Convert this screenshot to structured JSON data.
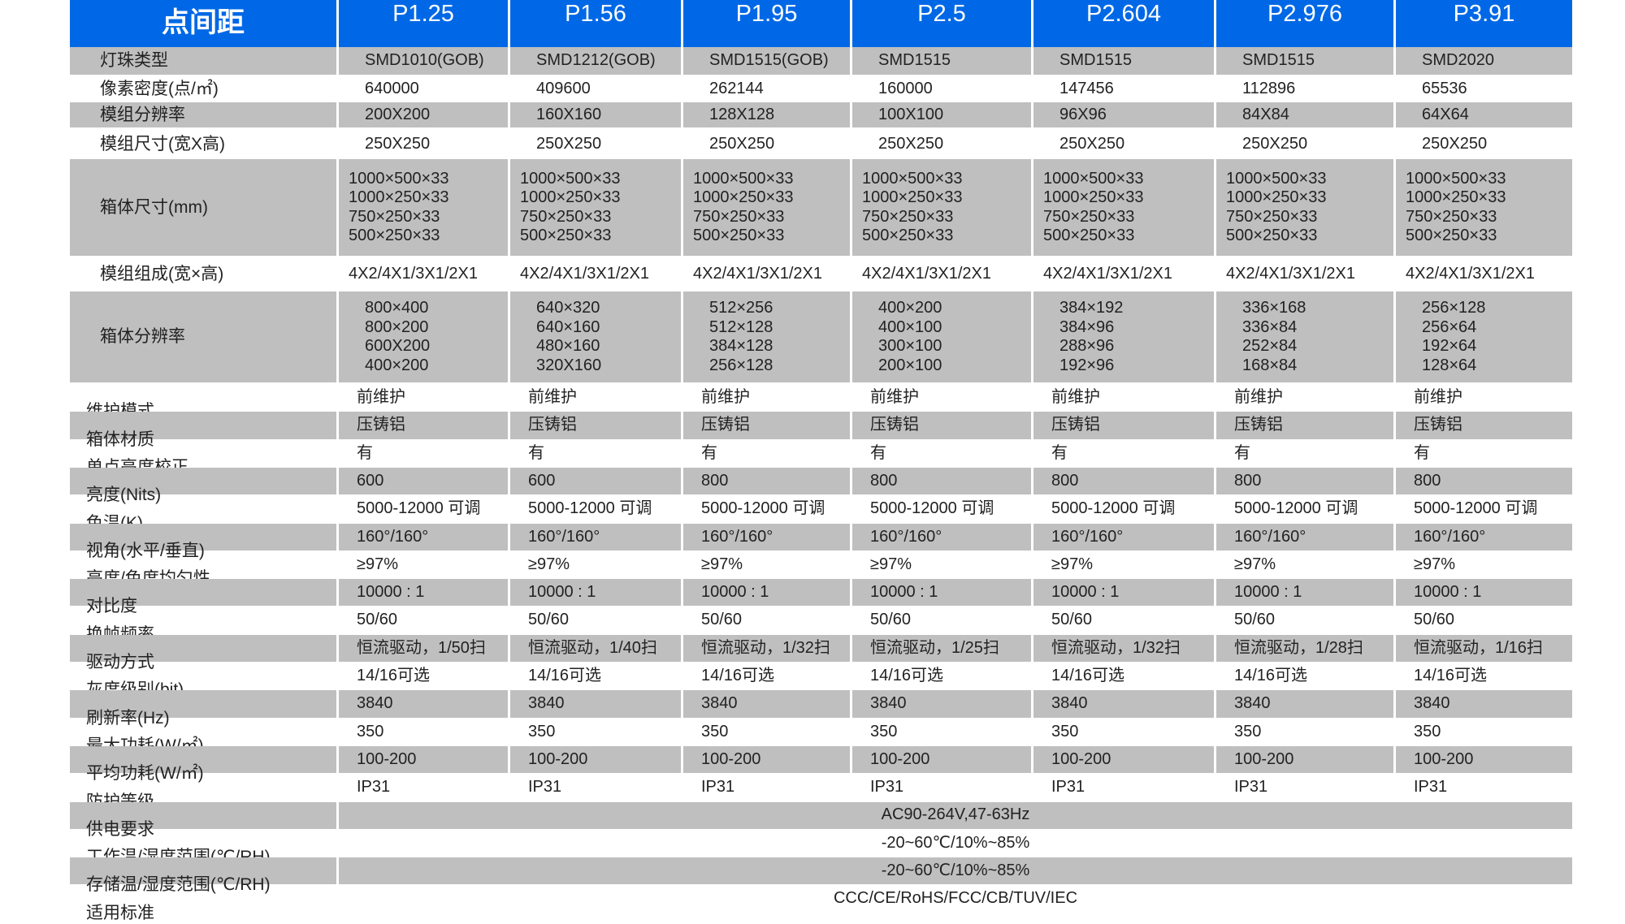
{
  "header": {
    "title": "点间距",
    "columns": [
      "P1.25",
      "P1.56",
      "P1.95",
      "P2.5",
      "P2.604",
      "P2.976",
      "P3.91"
    ]
  },
  "upper_rows": [
    {
      "label": "灯珠类型",
      "values": [
        "SMD1010(GOB)",
        "SMD1212(GOB)",
        "SMD1515(GOB)",
        "SMD1515",
        "SMD1515",
        "SMD1515",
        "SMD2020"
      ]
    },
    {
      "label": "像素密度(点/㎡)",
      "values": [
        "640000",
        "409600",
        "262144",
        "160000",
        "147456",
        "112896",
        "65536"
      ]
    },
    {
      "label": "模组分辨率",
      "values": [
        "200X200",
        "160X160",
        "128X128",
        "100X100",
        "96X96",
        "84X84",
        "64X64"
      ]
    },
    {
      "label": "模组尺寸(宽X高)",
      "values": [
        "250X250",
        "250X250",
        "250X250",
        "250X250",
        "250X250",
        "250X250",
        "250X250"
      ]
    },
    {
      "label": "箱体尺寸(mm)",
      "values": [
        "1000×500×33\n1000×250×33\n 750×250×33\n 500×250×33",
        "1000×500×33\n1000×250×33\n 750×250×33\n 500×250×33",
        "1000×500×33\n1000×250×33\n 750×250×33\n 500×250×33",
        "1000×500×33\n1000×250×33\n 750×250×33\n 500×250×33",
        "1000×500×33\n1000×250×33\n 750×250×33\n 500×250×33",
        "1000×500×33\n1000×250×33\n 750×250×33\n 500×250×33",
        "1000×500×33\n1000×250×33\n 750×250×33\n 500×250×33"
      ]
    },
    {
      "label": "模组组成(宽×高)",
      "values": [
        "4X2/4X1/3X1/2X1",
        "4X2/4X1/3X1/2X1",
        "4X2/4X1/3X1/2X1",
        "4X2/4X1/3X1/2X1",
        "4X2/4X1/3X1/2X1",
        "4X2/4X1/3X1/2X1",
        "4X2/4X1/3X1/2X1"
      ]
    },
    {
      "label": "箱体分辨率",
      "values": [
        "800×400\n800×200\n600X200\n400×200",
        "640×320\n640×160\n480×160\n320X160",
        "512×256\n512×128\n384×128\n256×128",
        "400×200\n400×100\n300×100\n200×100",
        "384×192\n384×96\n288×96\n192×96",
        "336×168\n336×84\n252×84\n168×84",
        "256×128\n256×64\n192×64\n128×64"
      ]
    }
  ],
  "lower_rows": [
    {
      "label": "维护模式",
      "values": [
        "前维护",
        "前维护",
        "前维护",
        "前维护",
        "前维护",
        "前维护",
        "前维护"
      ]
    },
    {
      "label": "箱体材质",
      "values": [
        "压铸铝",
        "压铸铝",
        "压铸铝",
        "压铸铝",
        "压铸铝",
        "压铸铝",
        "压铸铝"
      ]
    },
    {
      "label": "单点亮度校正",
      "values": [
        "有",
        "有",
        "有",
        "有",
        "有",
        "有",
        "有"
      ]
    },
    {
      "label": "亮度(Nits)",
      "values": [
        "600",
        "600",
        "800",
        "800",
        "800",
        "800",
        "800"
      ]
    },
    {
      "label": "色温(K)",
      "values": [
        "5000-12000 可调",
        "5000-12000 可调",
        "5000-12000 可调",
        "5000-12000 可调",
        "5000-12000 可调",
        "5000-12000 可调",
        "5000-12000 可调"
      ]
    },
    {
      "label": "视角(水平/垂直)",
      "values": [
        "160°/160°",
        "160°/160°",
        "160°/160°",
        "160°/160°",
        "160°/160°",
        "160°/160°",
        "160°/160°"
      ]
    },
    {
      "label": "亮度/色度均匀性",
      "values": [
        "≥97%",
        "≥97%",
        "≥97%",
        "≥97%",
        "≥97%",
        "≥97%",
        "≥97%"
      ]
    },
    {
      "label": "对比度",
      "values": [
        "10000 : 1",
        "10000 : 1",
        "10000 : 1",
        "10000 : 1",
        "10000 : 1",
        "10000 : 1",
        "10000 : 1"
      ]
    },
    {
      "label": "换帧频率",
      "values": [
        "50/60",
        "50/60",
        "50/60",
        "50/60",
        "50/60",
        "50/60",
        "50/60"
      ]
    },
    {
      "label": "驱动方式",
      "values": [
        "恒流驱动，1/50扫",
        "恒流驱动，1/40扫",
        "恒流驱动，1/32扫",
        "恒流驱动，1/25扫",
        "恒流驱动，1/32扫",
        "恒流驱动，1/28扫",
        "恒流驱动，1/16扫"
      ]
    },
    {
      "label": "灰度级别(bit)",
      "values": [
        "14/16可选",
        "14/16可选",
        "14/16可选",
        "14/16可选",
        "14/16可选",
        "14/16可选",
        "14/16可选"
      ]
    },
    {
      "label": "刷新率(Hz)",
      "values": [
        "3840",
        "3840",
        "3840",
        "3840",
        "3840",
        "3840",
        "3840"
      ]
    },
    {
      "label": "最大功耗(W/㎡)",
      "values": [
        "350",
        "350",
        "350",
        "350",
        "350",
        "350",
        "350"
      ]
    },
    {
      "label": "平均功耗(W/㎡)",
      "values": [
        "100-200",
        "100-200",
        "100-200",
        "100-200",
        "100-200",
        "100-200",
        "100-200"
      ]
    },
    {
      "label": "防护等级",
      "values": [
        "IP31",
        "IP31",
        "IP31",
        "IP31",
        "IP31",
        "IP31",
        "IP31"
      ]
    },
    {
      "label": "供电要求",
      "merged": "AC90-264V,47-63Hz"
    },
    {
      "label": "工作温/湿度范围(℃/RH)",
      "merged": "-20~60℃/10%~85%"
    },
    {
      "label": "存储温/湿度范围(℃/RH)",
      "merged": "-20~60℃/10%~85%"
    },
    {
      "label": "适用标准",
      "merged": "CCC/CE/RoHS/FCC/CB/TUV/IEC"
    }
  ],
  "colors": {
    "header_bg": "#0068e6",
    "row_gray": "#bfbfbf"
  }
}
